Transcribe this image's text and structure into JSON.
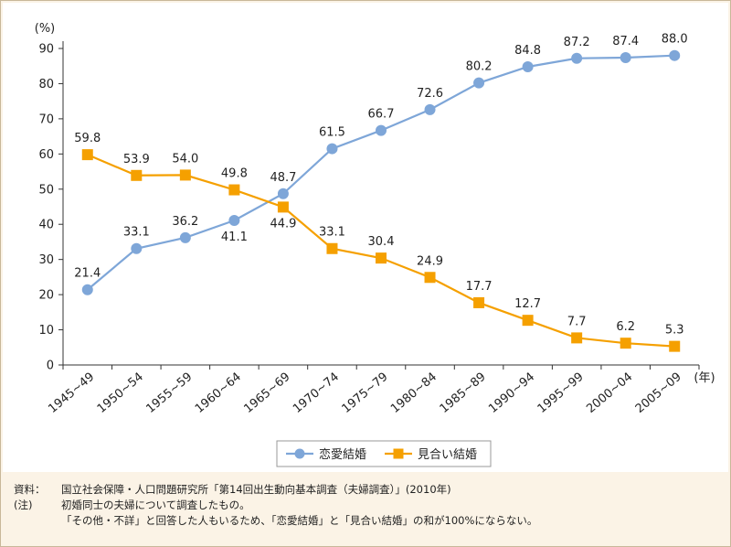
{
  "chart_data": {
    "type": "line",
    "ylabel": "(%)",
    "xunit": "(年)",
    "ylim": [
      0,
      90
    ],
    "yticks": [
      0,
      10,
      20,
      30,
      40,
      50,
      60,
      70,
      80,
      90
    ],
    "categories": [
      "1945~49",
      "1950~54",
      "1955~59",
      "1960~64",
      "1965~69",
      "1970~74",
      "1975~79",
      "1980~84",
      "1985~89",
      "1990~94",
      "1995~99",
      "2000~04",
      "2005~09"
    ],
    "series": [
      {
        "name": "恋愛結婚",
        "color": "#7ea6d8",
        "marker": "circle",
        "values": [
          21.4,
          33.1,
          36.2,
          41.1,
          48.7,
          61.5,
          66.7,
          72.6,
          80.2,
          84.8,
          87.2,
          87.4,
          88.0
        ],
        "labels": [
          "21.4",
          "33.1",
          "36.2",
          "41.1",
          "48.7",
          "61.5",
          "66.7",
          "72.6",
          "80.2",
          "84.8",
          "87.2",
          "87.4",
          "88.0"
        ]
      },
      {
        "name": "見合い結婚",
        "color": "#f5a000",
        "marker": "square",
        "values": [
          59.8,
          53.9,
          54.0,
          49.8,
          44.9,
          33.1,
          30.4,
          24.9,
          17.7,
          12.7,
          7.7,
          6.2,
          5.3
        ],
        "labels": [
          "59.8",
          "53.9",
          "54.0",
          "49.8",
          "44.9",
          "33.1",
          "30.4",
          "24.9",
          "17.7",
          "12.7",
          "7.7",
          "6.2",
          "5.3"
        ]
      }
    ],
    "grid": false,
    "legend_position": "bottom-center"
  },
  "notes": {
    "source_key": "資料：",
    "source_text": "国立社会保障・人口問題研究所「第14回出生動向基本調査（夫婦調査）」(2010年)",
    "note_key": "(注)",
    "note_line1": "初婚同士の夫婦について調査したもの。",
    "note_line2": "「その他・不詳」と回答した人もいるため、「恋愛結婚」と「見合い結婚」の和が100%にならない。"
  }
}
